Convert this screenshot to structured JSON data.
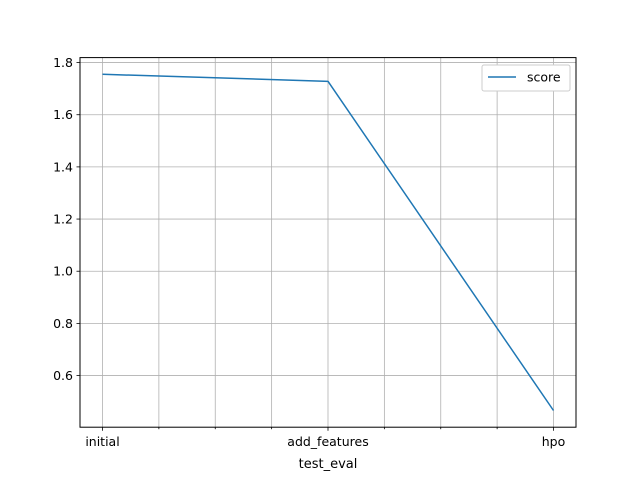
{
  "chart_data": {
    "type": "line",
    "categories": [
      "initial",
      "add_features",
      "hpo"
    ],
    "series": [
      {
        "name": "score",
        "values": [
          1.755,
          1.728,
          0.466
        ],
        "color": "#1f77b4"
      }
    ],
    "xlabel": "test_eval",
    "ylabel": "",
    "ylim": [
      0.402,
      1.819
    ],
    "yticks": [
      "0.6",
      "0.8",
      "1.0",
      "1.2",
      "1.4",
      "1.6",
      "1.8"
    ],
    "grid": true,
    "legend_position": "top-right"
  }
}
